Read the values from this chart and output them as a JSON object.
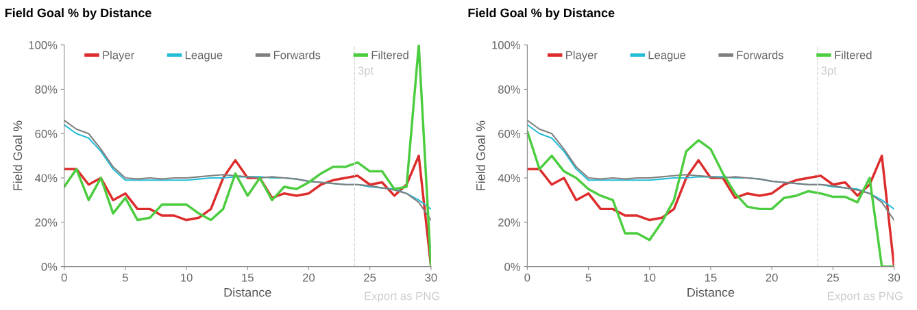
{
  "chart_data": [
    {
      "type": "line",
      "title": "Field Goal % by Distance",
      "xlabel": "Distance",
      "ylabel": "Field Goal %",
      "x": [
        0,
        1,
        2,
        3,
        4,
        5,
        6,
        7,
        8,
        9,
        10,
        11,
        12,
        13,
        14,
        15,
        16,
        17,
        18,
        19,
        20,
        21,
        22,
        23,
        24,
        25,
        26,
        27,
        28,
        29,
        30
      ],
      "series": [
        {
          "name": "Player",
          "color": "#dd2c2c",
          "values": [
            44,
            44,
            37,
            40,
            30,
            33,
            26,
            26,
            23,
            23,
            21,
            22,
            26,
            40,
            48,
            40,
            40,
            31,
            33,
            32,
            33,
            37,
            39,
            40,
            41,
            37,
            38,
            32,
            37,
            50,
            0
          ]
        },
        {
          "name": "League",
          "color": "#26bcd7",
          "values": [
            64,
            60,
            58,
            52,
            44,
            39,
            39,
            39,
            39,
            39,
            39,
            39.5,
            40,
            40,
            40.5,
            40.5,
            40.5,
            40,
            40,
            39.5,
            38.5,
            38,
            37.5,
            37,
            37,
            36,
            35.5,
            35,
            33,
            30,
            26
          ]
        },
        {
          "name": "Forwards",
          "color": "#7f7f7f",
          "values": [
            66,
            62,
            60,
            53,
            45,
            40,
            39.5,
            40,
            39.5,
            40,
            40,
            40.5,
            41,
            41.5,
            41,
            40.5,
            40,
            40.5,
            40,
            39.5,
            38.5,
            38,
            37.5,
            37,
            37,
            36.5,
            35.5,
            34.5,
            33,
            29,
            21
          ]
        },
        {
          "name": "Filtered",
          "color": "#4ccc3f",
          "values": [
            36,
            44,
            30,
            40,
            24,
            31,
            21,
            22,
            28,
            28,
            28,
            24,
            21,
            26,
            42,
            32,
            40,
            30,
            36,
            35,
            38,
            42,
            45,
            45,
            47,
            43,
            43,
            35,
            36,
            100,
            0
          ]
        }
      ],
      "xlim": [
        0,
        30
      ],
      "xticks": [
        0,
        5,
        10,
        15,
        20,
        25,
        30
      ],
      "ylim": [
        0,
        100
      ],
      "yticks": [
        {
          "value": 0,
          "label": "0%"
        },
        {
          "value": 20,
          "label": "20%"
        },
        {
          "value": 40,
          "label": "40%"
        },
        {
          "value": 60,
          "label": "60%"
        },
        {
          "value": 80,
          "label": "80%"
        },
        {
          "value": 100,
          "label": "100%"
        }
      ],
      "ref_lines": [
        {
          "axis": "x",
          "value": 23.75,
          "label": "3pt",
          "color": "#d9d9d9",
          "line_style": "dashed"
        }
      ],
      "legend": "top",
      "grid": false,
      "line_style": "solid",
      "marker": "none",
      "annotations": [
        "Export as PNG"
      ]
    },
    {
      "type": "line",
      "title": "Field Goal % by Distance",
      "xlabel": "Distance",
      "ylabel": "Field Goal %",
      "x": [
        0,
        1,
        2,
        3,
        4,
        5,
        6,
        7,
        8,
        9,
        10,
        11,
        12,
        13,
        14,
        15,
        16,
        17,
        18,
        19,
        20,
        21,
        22,
        23,
        24,
        25,
        26,
        27,
        28,
        29,
        30
      ],
      "series": [
        {
          "name": "Player",
          "color": "#dd2c2c",
          "values": [
            44,
            44,
            37,
            40,
            30,
            33,
            26,
            26,
            23,
            23,
            21,
            22,
            26,
            40,
            48,
            40,
            40,
            31,
            33,
            32,
            33,
            37,
            39,
            40,
            41,
            37,
            38,
            32,
            37,
            50,
            0
          ]
        },
        {
          "name": "League",
          "color": "#26bcd7",
          "values": [
            64,
            60,
            58,
            52,
            44,
            39,
            39,
            39,
            39,
            39,
            39,
            39.5,
            40,
            40,
            40.5,
            40.5,
            40.5,
            40,
            40,
            39.5,
            38.5,
            38,
            37.5,
            37,
            37,
            36,
            35.5,
            35,
            33,
            30,
            26
          ]
        },
        {
          "name": "Forwards",
          "color": "#7f7f7f",
          "values": [
            66,
            62,
            60,
            53,
            45,
            40,
            39.5,
            40,
            39.5,
            40,
            40,
            40.5,
            41,
            41.5,
            41,
            40.5,
            40,
            40.5,
            40,
            39.5,
            38.5,
            38,
            37.5,
            37,
            37,
            36.5,
            35.5,
            34.5,
            33,
            29,
            21
          ]
        },
        {
          "name": "Filtered",
          "color": "#4ccc3f",
          "values": [
            61,
            44,
            50,
            43,
            40,
            35,
            32,
            30,
            15,
            15,
            12,
            20,
            30,
            52,
            57,
            53,
            42,
            33,
            27,
            26,
            26,
            31,
            32,
            34,
            33,
            31.5,
            31.5,
            29,
            40,
            0,
            0
          ]
        }
      ],
      "xlim": [
        0,
        30
      ],
      "xticks": [
        0,
        5,
        10,
        15,
        20,
        25,
        30
      ],
      "ylim": [
        0,
        100
      ],
      "yticks": [
        {
          "value": 0,
          "label": "0%"
        },
        {
          "value": 20,
          "label": "20%"
        },
        {
          "value": 40,
          "label": "40%"
        },
        {
          "value": 60,
          "label": "60%"
        },
        {
          "value": 80,
          "label": "80%"
        },
        {
          "value": 100,
          "label": "100%"
        }
      ],
      "ref_lines": [
        {
          "axis": "x",
          "value": 23.75,
          "label": "3pt",
          "color": "#d9d9d9",
          "line_style": "dashed"
        }
      ],
      "legend": "top",
      "grid": false,
      "line_style": "solid",
      "marker": "none",
      "annotations": [
        "Export as PNG"
      ]
    }
  ]
}
